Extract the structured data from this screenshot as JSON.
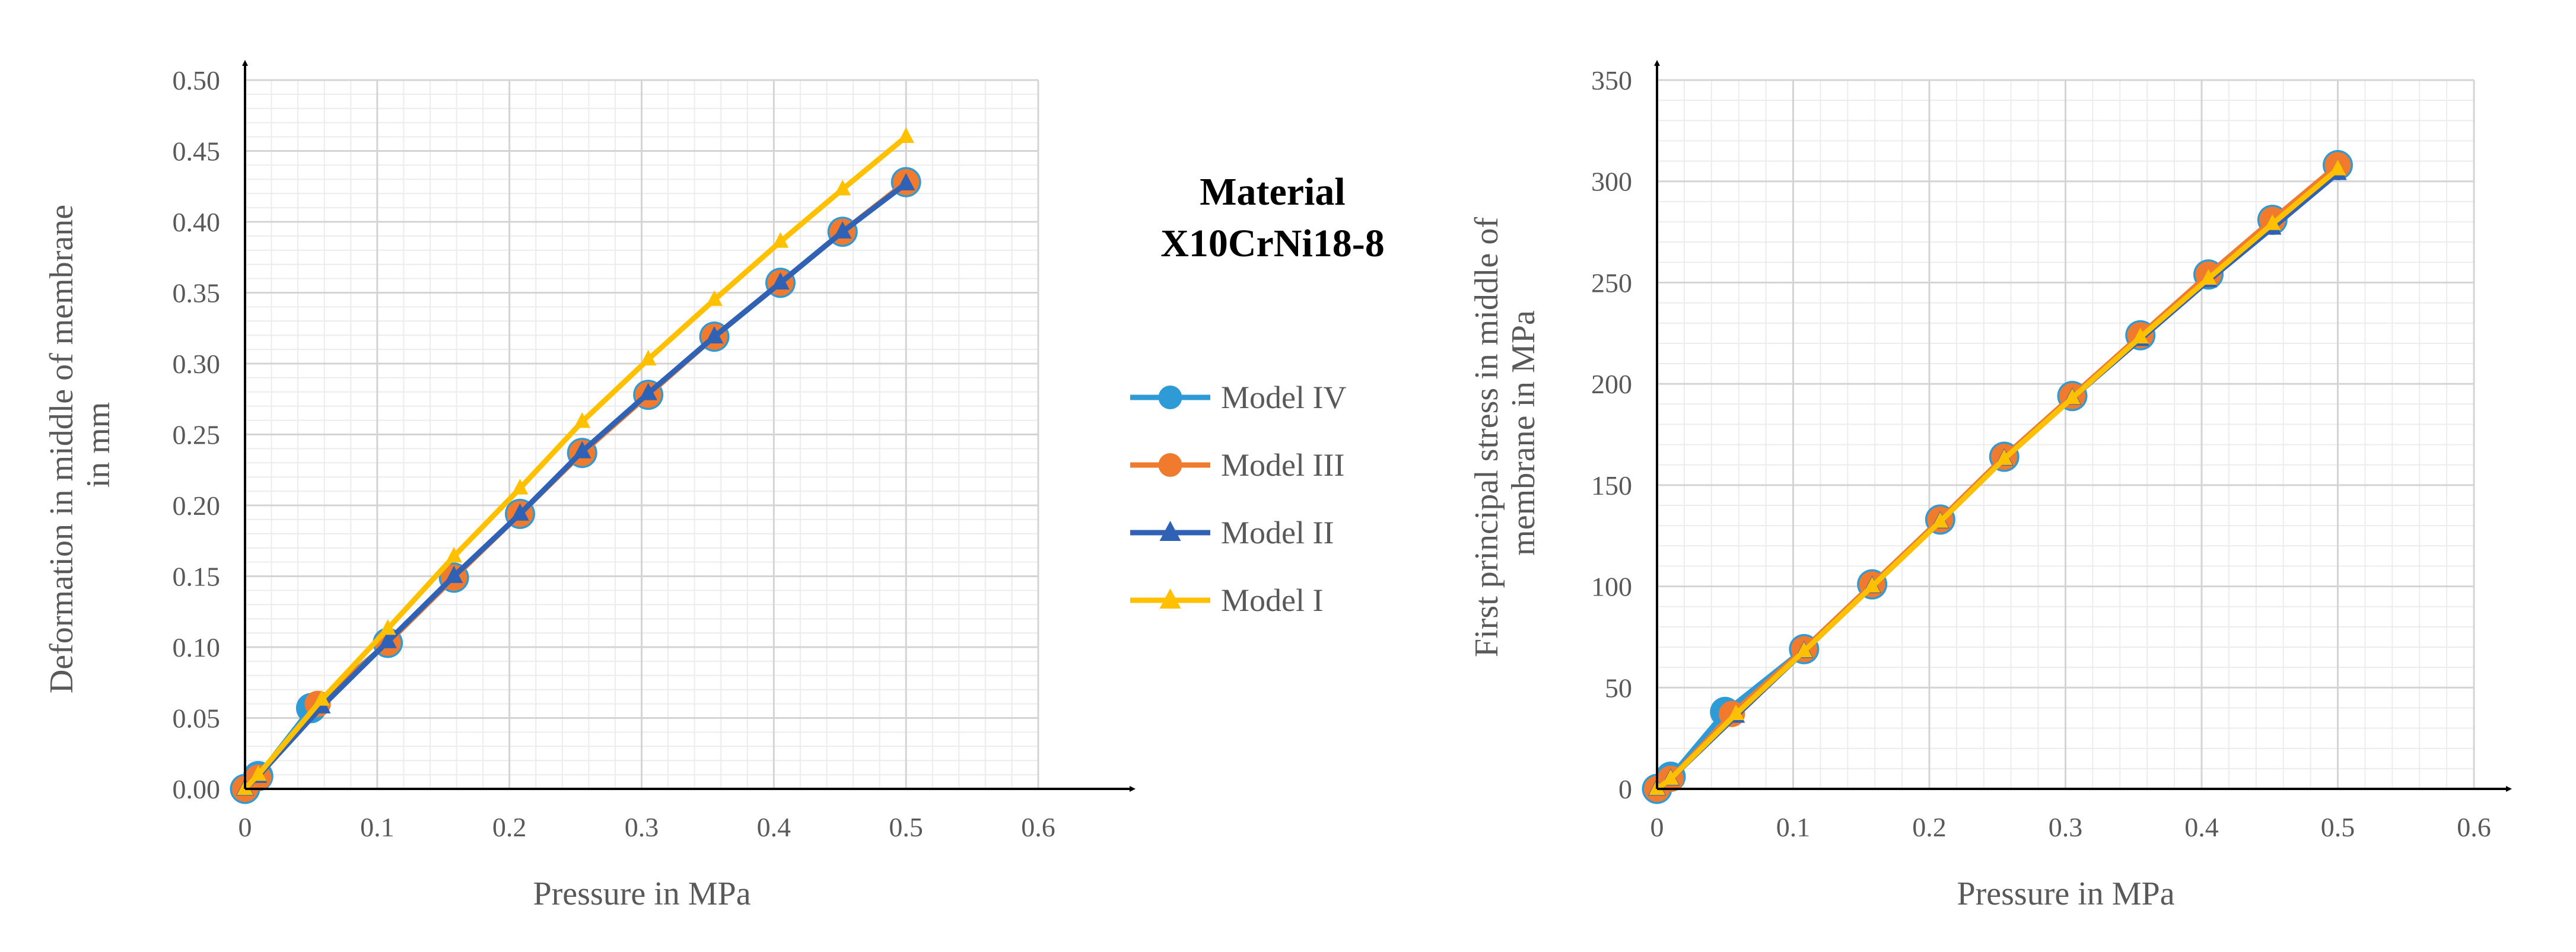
{
  "material": {
    "line1": "Material",
    "line2": "X10CrNi18-8"
  },
  "legend": [
    {
      "name": "Model IV",
      "color": "#2E9BD6",
      "marker": "circle"
    },
    {
      "name": "Model III",
      "color": "#F07A2E",
      "marker": "circle"
    },
    {
      "name": "Model II",
      "color": "#2F62B5",
      "marker": "triangle"
    },
    {
      "name": "Model I",
      "color": "#FFC000",
      "marker": "triangle"
    }
  ],
  "chart_data": [
    {
      "type": "line",
      "xlabel": "Pressure in MPa",
      "ylabel_lines": [
        "Deformation in middle of membrane",
        "in mm"
      ],
      "xlim": [
        0,
        0.6
      ],
      "ylim": [
        0,
        0.5
      ],
      "x_ticks": [
        "0",
        "0.1",
        "0.2",
        "0.3",
        "0.4",
        "0.5",
        "0.6"
      ],
      "y_ticks": [
        "0.00",
        "0.05",
        "0.10",
        "0.15",
        "0.20",
        "0.25",
        "0.30",
        "0.35",
        "0.40",
        "0.45",
        "0.50"
      ],
      "x_tick_values": [
        0,
        0.1,
        0.2,
        0.3,
        0.4,
        0.5,
        0.6
      ],
      "y_tick_values": [
        0,
        0.05,
        0.1,
        0.15,
        0.2,
        0.25,
        0.3,
        0.35,
        0.4,
        0.45,
        0.5
      ],
      "grid": true,
      "series": [
        {
          "name": "Model IV",
          "x": [
            0,
            0.01,
            0.05,
            0.108,
            0.158,
            0.208,
            0.255,
            0.305,
            0.355,
            0.405,
            0.452,
            0.5
          ],
          "y": [
            0,
            0.009,
            0.057,
            0.103,
            0.149,
            0.194,
            0.237,
            0.278,
            0.319,
            0.357,
            0.393,
            0.428
          ]
        },
        {
          "name": "Model III",
          "x": [
            0,
            0.01,
            0.055,
            0.108,
            0.158,
            0.208,
            0.255,
            0.305,
            0.355,
            0.405,
            0.452,
            0.5
          ],
          "y": [
            0,
            0.008,
            0.06,
            0.103,
            0.149,
            0.194,
            0.237,
            0.278,
            0.319,
            0.357,
            0.393,
            0.428
          ]
        },
        {
          "name": "Model II",
          "x": [
            0,
            0.01,
            0.058,
            0.108,
            0.158,
            0.208,
            0.255,
            0.305,
            0.355,
            0.405,
            0.452,
            0.5
          ],
          "y": [
            0,
            0.009,
            0.058,
            0.104,
            0.15,
            0.194,
            0.238,
            0.279,
            0.319,
            0.357,
            0.393,
            0.427
          ]
        },
        {
          "name": "Model I",
          "x": [
            0,
            0.01,
            0.058,
            0.108,
            0.158,
            0.208,
            0.255,
            0.305,
            0.355,
            0.405,
            0.452,
            0.5
          ],
          "y": [
            0,
            0.01,
            0.063,
            0.113,
            0.164,
            0.212,
            0.259,
            0.303,
            0.345,
            0.386,
            0.423,
            0.46
          ]
        }
      ]
    },
    {
      "type": "line",
      "xlabel": "Pressure in MPa",
      "ylabel_lines": [
        "First principal stress in middle of",
        "membrane in MPa"
      ],
      "xlim": [
        0,
        0.6
      ],
      "ylim": [
        0,
        350
      ],
      "x_ticks": [
        "0",
        "0.1",
        "0.2",
        "0.3",
        "0.4",
        "0.5",
        "0.6"
      ],
      "y_ticks": [
        "0",
        "50",
        "100",
        "150",
        "200",
        "250",
        "300",
        "350"
      ],
      "x_tick_values": [
        0,
        0.1,
        0.2,
        0.3,
        0.4,
        0.5,
        0.6
      ],
      "y_tick_values": [
        0,
        50,
        100,
        150,
        200,
        250,
        300,
        350
      ],
      "grid": true,
      "series": [
        {
          "name": "Model IV",
          "x": [
            0,
            0.01,
            0.05,
            0.108,
            0.158,
            0.208,
            0.255,
            0.305,
            0.355,
            0.405,
            0.452,
            0.5
          ],
          "y": [
            0,
            6,
            38,
            69,
            101,
            133,
            164,
            194,
            224,
            254,
            281,
            308
          ]
        },
        {
          "name": "Model III",
          "x": [
            0,
            0.01,
            0.055,
            0.108,
            0.158,
            0.208,
            0.255,
            0.305,
            0.355,
            0.405,
            0.452,
            0.5
          ],
          "y": [
            0,
            5,
            37,
            69,
            101,
            133,
            164,
            194,
            224,
            254,
            281,
            308
          ]
        },
        {
          "name": "Model II",
          "x": [
            0,
            0.01,
            0.058,
            0.108,
            0.158,
            0.208,
            0.255,
            0.305,
            0.355,
            0.405,
            0.452,
            0.5
          ],
          "y": [
            0,
            5,
            36,
            68,
            100,
            132,
            163,
            193,
            222,
            251,
            277,
            304
          ]
        },
        {
          "name": "Model I",
          "x": [
            0,
            0.01,
            0.058,
            0.108,
            0.158,
            0.208,
            0.255,
            0.305,
            0.355,
            0.405,
            0.452,
            0.5
          ],
          "y": [
            0,
            5,
            37,
            68,
            100,
            132,
            163,
            193,
            223,
            252,
            279,
            306
          ]
        }
      ]
    }
  ]
}
